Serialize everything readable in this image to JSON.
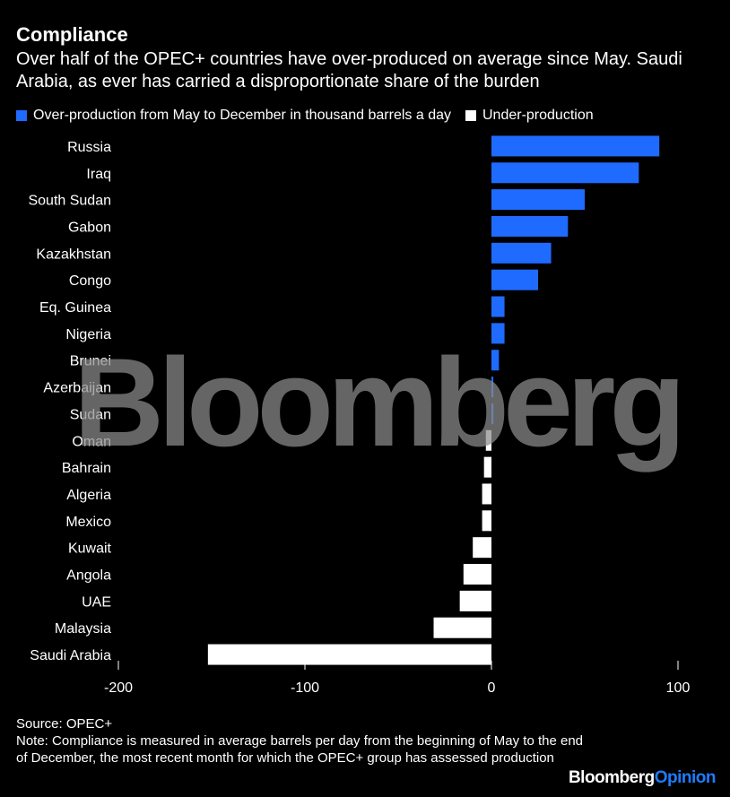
{
  "header": {
    "title": "Compliance",
    "subtitle": "Over half of the OPEC+ countries have over-produced on average since May. Saudi Arabia, as ever has carried a disproportionate share of the burden"
  },
  "legend": {
    "over_label": "Over-production from May to December in thousand barrels a day",
    "under_label": "Under-production",
    "over_color": "#1f6bff",
    "under_color": "#ffffff"
  },
  "chart_data": {
    "type": "bar",
    "orientation": "horizontal",
    "categories": [
      "Russia",
      "Iraq",
      "South Sudan",
      "Gabon",
      "Kazakhstan",
      "Congo",
      "Eq. Guinea",
      "Nigeria",
      "Brunei",
      "Azerbaijan",
      "Sudan",
      "Oman",
      "Bahrain",
      "Algeria",
      "Mexico",
      "Kuwait",
      "Angola",
      "UAE",
      "Malaysia",
      "Saudi Arabia"
    ],
    "series": [
      {
        "values": [
          90,
          79,
          50,
          41,
          32,
          25,
          7,
          7,
          4,
          1,
          1,
          -3,
          -4,
          -5,
          -5,
          -10,
          -15,
          -17,
          -31,
          -152
        ]
      }
    ],
    "xlim": [
      -200,
      100
    ],
    "xticks": [
      -200,
      -100,
      0,
      100
    ],
    "xtick_labels": [
      "-200",
      "-100",
      "0",
      "100"
    ],
    "grid": false,
    "legend_position": "top"
  },
  "watermark": "Bloomberg",
  "footer": {
    "source": "Source: OPEC+",
    "note": "Note: Compliance is measured in average barrels per day from the beginning of May to the end of December, the most recent month for which the OPEC+ group has assessed production"
  },
  "brand": {
    "name": "Bloomberg",
    "suffix": "Opinion"
  }
}
